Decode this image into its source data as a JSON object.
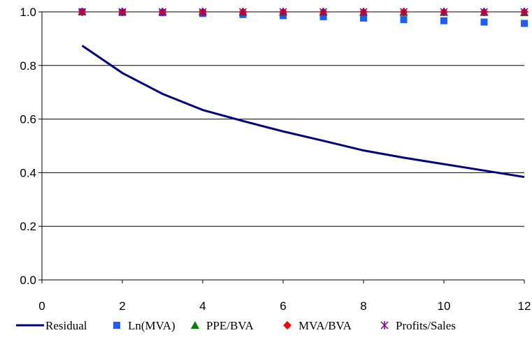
{
  "chart_data": {
    "type": "scatter",
    "title": "",
    "xlabel": "",
    "ylabel": "",
    "xlim": [
      0,
      12
    ],
    "ylim": [
      0,
      1
    ],
    "x_ticks": [
      "0",
      "2",
      "4",
      "6",
      "8",
      "10",
      "12"
    ],
    "y_ticks": [
      "0.0",
      "0.2",
      "0.4",
      "0.6",
      "0.8",
      "1.0"
    ],
    "grid": "horizontal",
    "legend_position": "bottom",
    "x": [
      1,
      2,
      3,
      4,
      5,
      6,
      7,
      8,
      9,
      10,
      11,
      12
    ],
    "series": [
      {
        "name": "Residual",
        "kind": "line",
        "color": "#000080",
        "values": [
          0.874,
          0.772,
          0.694,
          0.634,
          0.593,
          0.554,
          0.519,
          0.483,
          0.456,
          0.432,
          0.408,
          0.384
        ]
      },
      {
        "name": "Ln(MVA)",
        "kind": "square",
        "color": "#1f5cff",
        "values": [
          1.0,
          0.998,
          0.997,
          0.994,
          0.99,
          0.986,
          0.982,
          0.977,
          0.971,
          0.967,
          0.962,
          0.957
        ]
      },
      {
        "name": "PPE/BVA",
        "kind": "triangle",
        "color": "#008000",
        "values": [
          1.0,
          1.0,
          1.0,
          1.0,
          0.999,
          0.999,
          0.999,
          0.999,
          0.998,
          0.998,
          0.998,
          0.997
        ]
      },
      {
        "name": "MVA/BVA",
        "kind": "diamond",
        "color": "#ff0000",
        "values": [
          1.0,
          1.0,
          1.0,
          1.0,
          1.0,
          1.0,
          1.0,
          1.0,
          1.0,
          1.0,
          1.0,
          1.0
        ]
      },
      {
        "name": "Profits/Sales",
        "kind": "asterisk",
        "color": "#800080",
        "values": [
          1.0,
          1.0,
          1.0,
          1.0,
          1.0,
          1.0,
          1.0,
          1.0,
          1.0,
          1.0,
          1.0,
          1.0
        ]
      }
    ]
  }
}
